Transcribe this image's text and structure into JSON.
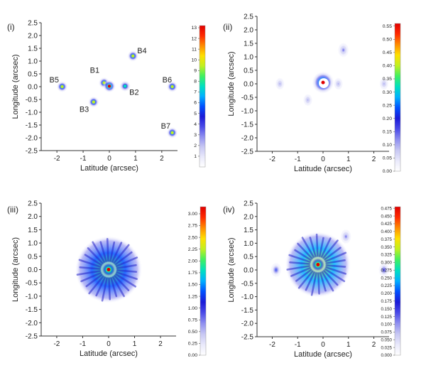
{
  "chart_data": [
    {
      "type": "heatmap",
      "panel_label": "(i)",
      "xlabel": "Latitude (arcsec)",
      "ylabel": "Longitude (arcsec)",
      "xlim": [
        -2.6,
        2.6
      ],
      "ylim": [
        -2.5,
        2.5
      ],
      "xticks": [
        "-2",
        "-1",
        "0",
        "1",
        "2"
      ],
      "xtick_values": [
        -2,
        -1,
        0,
        1,
        2
      ],
      "yticks": [
        "2.5",
        "2.0",
        "1.5",
        "1.0",
        "0.5",
        "0.0",
        "-0.5",
        "-1.0",
        "-1.5",
        "-2.0",
        "-2.5"
      ],
      "ytick_values": [
        2.5,
        2.0,
        1.5,
        1.0,
        0.5,
        0.0,
        -0.5,
        -1.0,
        -1.5,
        -2.0,
        -2.5
      ],
      "colorbar": {
        "min": 0,
        "max": 13.2,
        "ticks": [
          "13",
          "12",
          "11",
          "10",
          "9",
          "8",
          "7",
          "6",
          "5",
          "4",
          "3",
          "2",
          "1"
        ],
        "tick_values": [
          13,
          12,
          11,
          10,
          9,
          8,
          7,
          6,
          5,
          4,
          3,
          2,
          1
        ]
      },
      "sources": [
        {
          "label": "B1",
          "x": -0.2,
          "y": 0.15,
          "peak": 9
        },
        {
          "label": "",
          "x": 0.0,
          "y": 0.02,
          "peak": 13
        },
        {
          "label": "B2",
          "x": 0.6,
          "y": 0.02,
          "peak": 8
        },
        {
          "label": "B3",
          "x": -0.6,
          "y": -0.6,
          "peak": 9
        },
        {
          "label": "B4",
          "x": 0.9,
          "y": 1.2,
          "peak": 9
        },
        {
          "label": "B5",
          "x": -1.8,
          "y": 0.0,
          "peak": 9
        },
        {
          "label": "B6",
          "x": 2.4,
          "y": 0.0,
          "peak": 9
        },
        {
          "label": "B7",
          "x": 2.4,
          "y": -1.8,
          "peak": 9
        }
      ]
    },
    {
      "type": "heatmap",
      "panel_label": "(ii)",
      "xlabel": "Latitude (arcsec)",
      "ylabel": "Longitude (arcsec)",
      "xlim": [
        -2.6,
        2.6
      ],
      "ylim": [
        -2.5,
        2.5
      ],
      "xticks": [
        "-2",
        "-1",
        "0",
        "1",
        "2"
      ],
      "xtick_values": [
        -2,
        -1,
        0,
        1,
        2
      ],
      "yticks": [
        "2.5",
        "2.0",
        "1.5",
        "1.0",
        "0.5",
        "0.0",
        "-0.5",
        "-1.0",
        "-1.5",
        "-2.0",
        "-2.5"
      ],
      "ytick_values": [
        2.5,
        2.0,
        1.5,
        1.0,
        0.5,
        0.0,
        -0.5,
        -1.0,
        -1.5,
        -2.0,
        -2.5
      ],
      "colorbar": {
        "min": 0,
        "max": 0.56,
        "ticks": [
          "0.55",
          "0.50",
          "0.45",
          "0.40",
          "0.35",
          "0.30",
          "0.25",
          "0.20",
          "0.15",
          "0.10",
          "0.05",
          "0.00"
        ],
        "tick_values": [
          0.55,
          0.5,
          0.45,
          0.4,
          0.35,
          0.3,
          0.25,
          0.2,
          0.15,
          0.1,
          0.05,
          0.0
        ]
      },
      "features": [
        {
          "kind": "core",
          "x": 0.0,
          "y": 0.05,
          "peak": 0.55
        },
        {
          "kind": "diffuse",
          "x": 0.8,
          "y": 1.25,
          "peak": 0.1
        },
        {
          "kind": "diffuse",
          "x": -1.7,
          "y": 0.0,
          "peak": 0.06
        },
        {
          "kind": "diffuse",
          "x": 2.4,
          "y": 0.0,
          "peak": 0.06
        },
        {
          "kind": "diffuse",
          "x": -0.6,
          "y": -0.6,
          "peak": 0.05
        },
        {
          "kind": "diffuse",
          "x": 0.6,
          "y": 0.0,
          "peak": 0.06
        }
      ]
    },
    {
      "type": "heatmap",
      "panel_label": "(iii)",
      "xlabel": "Latitude (arcsec)",
      "ylabel": "Longitude (arcsec)",
      "xlim": [
        -2.6,
        2.6
      ],
      "ylim": [
        -2.5,
        2.5
      ],
      "xticks": [
        "-2",
        "-1",
        "0",
        "1",
        "2"
      ],
      "xtick_values": [
        -2,
        -1,
        0,
        1,
        2
      ],
      "yticks": [
        "2.5",
        "2.0",
        "1.5",
        "1.0",
        "0.5",
        "0.0",
        "-0.5",
        "-1.0",
        "-1.5",
        "-2.0",
        "-2.5"
      ],
      "ytick_values": [
        2.5,
        2.0,
        1.5,
        1.0,
        0.5,
        0.0,
        -0.5,
        -1.0,
        -1.5,
        -2.0,
        -2.5
      ],
      "colorbar": {
        "min": 0,
        "max": 3.15,
        "ticks": [
          "3.00",
          "2.75",
          "2.50",
          "2.25",
          "2.00",
          "1.75",
          "1.50",
          "1.25",
          "1.00",
          "0.75",
          "0.50",
          "0.25",
          "0.00"
        ],
        "tick_values": [
          3.0,
          2.75,
          2.5,
          2.25,
          2.0,
          1.75,
          1.5,
          1.25,
          1.0,
          0.75,
          0.5,
          0.25,
          0.0
        ]
      },
      "features": [
        {
          "kind": "core",
          "x": 0.0,
          "y": 0.0,
          "peak": 3.1
        },
        {
          "kind": "halo",
          "x": 0.0,
          "y": 0.0,
          "radius": 1.3,
          "peak": 0.6
        }
      ]
    },
    {
      "type": "heatmap",
      "panel_label": "(iv)",
      "xlabel": "Latitude (arcsec)",
      "ylabel": "Longitude (arcsec)",
      "xlim": [
        -2.6,
        2.6
      ],
      "ylim": [
        -2.5,
        2.5
      ],
      "xticks": [
        "-2",
        "-1",
        "0",
        "1",
        "2"
      ],
      "xtick_values": [
        -2,
        -1,
        0,
        1,
        2
      ],
      "yticks": [
        "2.5",
        "2.0",
        "1.5",
        "1.0",
        "0.5",
        "0.0",
        "-0.5",
        "-1.0",
        "-1.5",
        "-2.0",
        "-2.5"
      ],
      "ytick_values": [
        2.5,
        2.0,
        1.5,
        1.0,
        0.5,
        0.0,
        -0.5,
        -1.0,
        -1.5,
        -2.0,
        -2.5
      ],
      "colorbar": {
        "min": 0,
        "max": 0.48,
        "ticks": [
          "0.475",
          "0.450",
          "0.425",
          "0.400",
          "0.375",
          "0.350",
          "0.325",
          "0.300",
          "0.275",
          "0.250",
          "0.225",
          "0.200",
          "0.175",
          "0.150",
          "0.125",
          "0.100",
          "0.075",
          "0.050",
          "0.025",
          "0.000"
        ],
        "tick_values": [
          0.475,
          0.45,
          0.425,
          0.4,
          0.375,
          0.35,
          0.325,
          0.3,
          0.275,
          0.25,
          0.225,
          0.2,
          0.175,
          0.15,
          0.125,
          0.1,
          0.075,
          0.05,
          0.025,
          0.0
        ]
      },
      "features": [
        {
          "kind": "core",
          "x": -0.2,
          "y": 0.2,
          "peak": 0.47
        },
        {
          "kind": "halo",
          "x": -0.2,
          "y": 0.2,
          "radius": 1.3,
          "peak": 0.12
        },
        {
          "kind": "diffuse",
          "x": -1.85,
          "y": 0.0,
          "peak": 0.12
        },
        {
          "kind": "diffuse",
          "x": 0.9,
          "y": 1.25,
          "peak": 0.08
        },
        {
          "kind": "diffuse",
          "x": 2.4,
          "y": 0.0,
          "peak": 0.1
        }
      ]
    }
  ],
  "colors": {
    "colormap": [
      "#ffffff",
      "#e9e9fb",
      "#c7c7f3",
      "#8f8ff0",
      "#4a4ae8",
      "#1a1ad8",
      "#0050ff",
      "#00b0ff",
      "#00e0c0",
      "#40f060",
      "#c0f020",
      "#ffe000",
      "#ff8c00",
      "#ff2a00",
      "#e00000"
    ],
    "axis": "#333333",
    "text": "#222222"
  }
}
